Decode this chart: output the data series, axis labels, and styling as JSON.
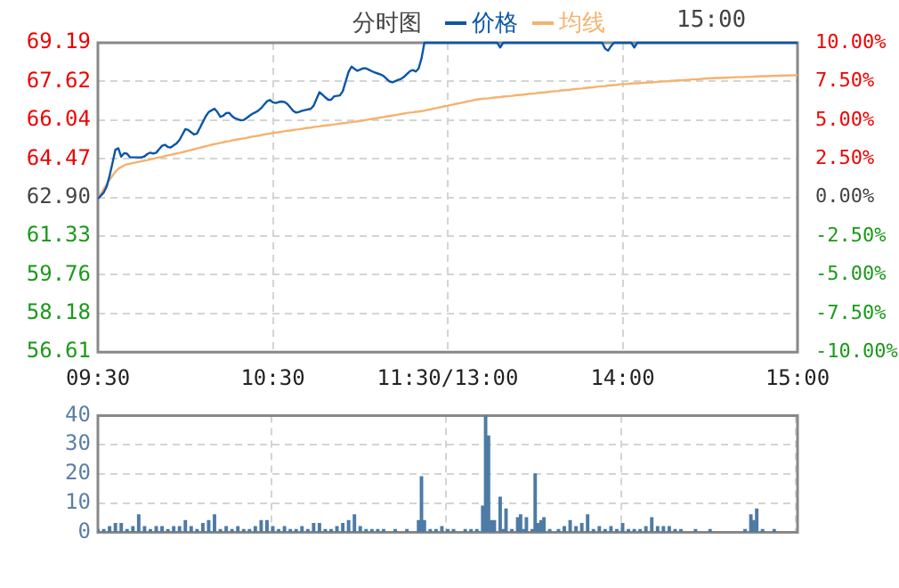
{
  "chart_data": [
    {
      "type": "line",
      "title": "分时图",
      "annotations": [
        "15:00"
      ],
      "legend": "top",
      "grid": true,
      "categories": [
        "09:30",
        null,
        null,
        null,
        null,
        null,
        null,
        null,
        null,
        null,
        null,
        null,
        null,
        null,
        null,
        null,
        null,
        null,
        null,
        null,
        null,
        null,
        null,
        null,
        null,
        null,
        null,
        null,
        null,
        null,
        null,
        null,
        null,
        null,
        null,
        null,
        null,
        null,
        null,
        null,
        null,
        null,
        null,
        null,
        null,
        null,
        null,
        null,
        null,
        null,
        null,
        null,
        null,
        null,
        null,
        null,
        null,
        null,
        null,
        null,
        "10:30",
        null,
        null,
        null,
        null,
        null,
        null,
        null,
        null,
        null,
        null,
        null,
        null,
        null,
        null,
        null,
        null,
        null,
        null,
        null,
        null,
        null,
        null,
        null,
        null,
        null,
        null,
        null,
        null,
        null,
        null,
        null,
        null,
        null,
        null,
        null,
        null,
        null,
        null,
        null,
        null,
        null,
        null,
        null,
        null,
        null,
        null,
        null,
        null,
        null,
        null,
        null,
        null,
        null,
        null,
        null,
        null,
        null,
        null,
        null,
        "11:30/13:00",
        null,
        null,
        null,
        null,
        null,
        null,
        null,
        null,
        null,
        null,
        null,
        null,
        null,
        null,
        null,
        null,
        null,
        null,
        null,
        null,
        null,
        null,
        null,
        null,
        null,
        null,
        null,
        null,
        null,
        null,
        null,
        null,
        null,
        null,
        null,
        null,
        null,
        null,
        null,
        null,
        null,
        null,
        null,
        null,
        null,
        null,
        null,
        null,
        null,
        null,
        null,
        null,
        null,
        null,
        null,
        null,
        null,
        null,
        null,
        "14:00",
        null,
        null,
        null,
        null,
        null,
        null,
        null,
        null,
        null,
        null,
        null,
        null,
        null,
        null,
        null,
        null,
        null,
        null,
        null,
        null,
        null,
        null,
        null,
        null,
        null,
        null,
        null,
        null,
        null,
        null,
        null,
        null,
        null,
        null,
        null,
        null,
        null,
        null,
        null,
        null,
        null,
        null,
        null,
        null,
        null,
        null,
        null,
        null,
        null,
        null,
        null,
        null,
        null,
        null,
        null,
        null,
        null,
        null,
        null,
        "15:00"
      ],
      "ylim": [
        56.61,
        69.19
      ],
      "yticks": [
        56.61,
        58.18,
        59.76,
        61.33,
        {
          "value": 62.9,
          "label": "62.90"
        },
        64.47,
        66.04,
        67.62,
        69.19
      ],
      "y2lim": [
        -10,
        10
      ],
      "y2ticks": [
        {
          "value": -10,
          "label": "-10.00%"
        },
        {
          "value": -7.5,
          "label": "-7.50%"
        },
        {
          "value": -5,
          "label": "-5.00%"
        },
        {
          "value": -2.5,
          "label": "-2.50%"
        },
        {
          "value": 0,
          "label": "0.00%"
        },
        {
          "value": 2.5,
          "label": "2.50%"
        },
        {
          "value": 5,
          "label": "5.00%"
        },
        {
          "value": 7.5,
          "label": "7.50%"
        },
        {
          "value": 10,
          "label": "10.00%"
        }
      ],
      "series": [
        {
          "name": "价格",
          "color": "#0a56a8",
          "values": [
            62.85,
            62.97,
            63.1,
            63.34,
            63.78,
            64.3,
            64.84,
            64.9,
            64.56,
            64.7,
            64.68,
            64.53,
            64.53,
            64.53,
            64.53,
            64.53,
            64.57,
            64.67,
            64.72,
            64.68,
            64.72,
            64.86,
            65.0,
            65.04,
            64.95,
            64.93,
            65.02,
            65.1,
            65.24,
            65.46,
            65.68,
            65.64,
            65.55,
            65.46,
            65.5,
            65.73,
            65.97,
            66.2,
            66.37,
            66.44,
            66.51,
            66.37,
            66.18,
            66.22,
            66.33,
            66.34,
            66.21,
            66.12,
            66.08,
            66.04,
            66.05,
            66.13,
            66.22,
            66.3,
            66.36,
            66.43,
            66.53,
            66.67,
            66.81,
            66.86,
            66.77,
            66.74,
            66.78,
            66.8,
            66.78,
            66.7,
            66.56,
            66.42,
            66.35,
            66.38,
            66.42,
            66.45,
            66.48,
            66.5,
            66.63,
            66.91,
            67.18,
            67.08,
            66.97,
            66.87,
            66.87,
            67.01,
            67.03,
            67.05,
            67.22,
            67.62,
            68.01,
            68.22,
            68.13,
            68.05,
            68.1,
            68.15,
            68.15,
            68.09,
            68.03,
            67.98,
            67.94,
            67.9,
            67.84,
            67.73,
            67.62,
            67.58,
            67.63,
            67.68,
            67.72,
            67.8,
            67.92,
            68.03,
            68.08,
            68.02,
            68.14,
            68.55,
            69.19,
            69.19,
            69.19,
            69.19,
            69.19,
            69.19,
            69.19,
            69.19,
            69.19,
            69.19,
            69.19,
            69.19,
            69.19,
            69.19,
            69.19,
            69.19,
            69.19,
            69.19,
            69.19,
            69.19,
            69.19,
            69.19,
            69.19,
            69.19,
            69.19,
            69.19,
            69.0,
            69.19,
            69.19,
            69.19,
            69.19,
            69.19,
            69.19,
            69.19,
            69.19,
            69.19,
            69.19,
            69.19,
            69.19,
            69.19,
            69.19,
            69.19,
            69.19,
            69.19,
            69.19,
            69.19,
            69.19,
            69.19,
            69.19,
            69.19,
            69.19,
            69.19,
            69.19,
            69.19,
            69.19,
            69.19,
            69.19,
            69.19,
            69.19,
            69.19,
            69.19,
            69.19,
            68.95,
            68.87,
            69.05,
            69.19,
            69.19,
            69.19,
            69.19,
            69.19,
            69.19,
            69.19,
            69.0,
            69.19,
            69.19,
            69.19,
            69.19,
            69.19,
            69.19,
            69.19,
            69.19,
            69.19,
            69.19,
            69.19,
            69.19,
            69.19,
            69.19,
            69.19,
            69.19,
            69.19,
            69.19,
            69.19,
            69.19,
            69.19,
            69.19,
            69.19,
            69.19,
            69.19,
            69.19,
            69.19,
            69.19,
            69.19,
            69.19,
            69.19,
            69.19,
            69.19,
            69.19,
            69.19,
            69.19,
            69.19,
            69.19,
            69.19,
            69.19,
            69.19,
            69.19,
            69.19,
            69.19,
            69.19,
            69.19,
            69.19,
            69.19,
            69.19,
            69.19,
            69.19,
            69.19,
            69.19,
            69.19,
            69.19,
            69.19
          ]
        },
        {
          "name": "均线",
          "color": "#f5b26e",
          "values": [
            62.85,
            63.04,
            63.24,
            63.43,
            63.62,
            63.78,
            63.94,
            64.07,
            64.13,
            64.2,
            64.25,
            64.27,
            64.3,
            64.32,
            64.35,
            64.37,
            64.4,
            64.42,
            64.45,
            64.47,
            64.5,
            64.53,
            64.55,
            64.58,
            64.61,
            64.63,
            64.66,
            64.69,
            64.71,
            64.74,
            64.77,
            64.8,
            64.83,
            64.86,
            64.89,
            64.92,
            64.95,
            64.98,
            65.01,
            65.04,
            65.07,
            65.09,
            65.12,
            65.14,
            65.17,
            65.19,
            65.22,
            65.24,
            65.26,
            65.28,
            65.3,
            65.32,
            65.35,
            65.37,
            65.39,
            65.41,
            65.43,
            65.46,
            65.48,
            65.5,
            65.52,
            65.54,
            65.55,
            65.57,
            65.59,
            65.61,
            65.62,
            65.64,
            65.66,
            65.67,
            65.69,
            65.71,
            65.73,
            65.74,
            65.76,
            65.78,
            65.79,
            65.81,
            65.82,
            65.84,
            65.85,
            65.87,
            65.88,
            65.9,
            65.92,
            65.93,
            65.95,
            65.96,
            65.98,
            65.99,
            66.01,
            66.03,
            66.05,
            66.07,
            66.09,
            66.11,
            66.13,
            66.15,
            66.17,
            66.19,
            66.21,
            66.23,
            66.25,
            66.27,
            66.29,
            66.31,
            66.33,
            66.35,
            66.36,
            66.38,
            66.39,
            66.41,
            66.43,
            66.46,
            66.48,
            66.51,
            66.53,
            66.56,
            66.58,
            66.61,
            66.63,
            66.66,
            66.68,
            66.71,
            66.73,
            66.76,
            66.78,
            66.81,
            66.83,
            66.86,
            66.88,
            66.9,
            66.91,
            66.92,
            66.93,
            66.95,
            66.96,
            66.97,
            66.98,
            67.0,
            67.01,
            67.02,
            67.03,
            67.05,
            67.06,
            67.07,
            67.08,
            67.1,
            67.11,
            67.12,
            67.13,
            67.15,
            67.16,
            67.17,
            67.18,
            67.2,
            67.21,
            67.22,
            67.23,
            67.25,
            67.26,
            67.27,
            67.28,
            67.3,
            67.31,
            67.32,
            67.33,
            67.35,
            67.36,
            67.37,
            67.38,
            67.4,
            67.41,
            67.42,
            67.43,
            67.45,
            67.46,
            67.47,
            67.48,
            67.5,
            67.51,
            67.51,
            67.52,
            67.53,
            67.54,
            67.54,
            67.55,
            67.56,
            67.57,
            67.58,
            67.58,
            67.59,
            67.6,
            67.61,
            67.62,
            67.62,
            67.63,
            67.64,
            67.65,
            67.66,
            67.66,
            67.67,
            67.68,
            67.69,
            67.7,
            67.7,
            67.71,
            67.72,
            67.73,
            67.74,
            67.74,
            67.75,
            67.76,
            67.76,
            67.76,
            67.77,
            67.77,
            67.78,
            67.78,
            67.79,
            67.79,
            67.79,
            67.8,
            67.8,
            67.81,
            67.81,
            67.82,
            67.82,
            67.83,
            67.83,
            67.83,
            67.84,
            67.84,
            67.85,
            67.85,
            67.86,
            67.86,
            67.86,
            67.87,
            67.87,
            67.88
          ]
        }
      ]
    },
    {
      "type": "bar",
      "grid": true,
      "categories": [
        null,
        null,
        null,
        null,
        null,
        null,
        null,
        null,
        null,
        null,
        null,
        null,
        null,
        null,
        null,
        null,
        null,
        null,
        null,
        null,
        null,
        null,
        null,
        null,
        null,
        null,
        null,
        null,
        null,
        null,
        null,
        null,
        null,
        null,
        null,
        null,
        null,
        null,
        null,
        null,
        null,
        null,
        null,
        null,
        null,
        null,
        null,
        null,
        null,
        null,
        null,
        null,
        null,
        null,
        null,
        null,
        null,
        null,
        null,
        null,
        null,
        null,
        null,
        null,
        null,
        null,
        null,
        null,
        null,
        null,
        null,
        null,
        null,
        null,
        null,
        null,
        null,
        null,
        null,
        null,
        null,
        null,
        null,
        null,
        null,
        null,
        null,
        null,
        null,
        null,
        null,
        null,
        null,
        null,
        null,
        null,
        null,
        null,
        null,
        null,
        null,
        null,
        null,
        null,
        null,
        null,
        null,
        null,
        null,
        null,
        null,
        null,
        null,
        null,
        null,
        null,
        null,
        null,
        null,
        null,
        null,
        null,
        null,
        null,
        null,
        null,
        null,
        null,
        null,
        null,
        null,
        null,
        null,
        null,
        null,
        null,
        null,
        null,
        null,
        null,
        null,
        null,
        null,
        null,
        null,
        null,
        null,
        null,
        null,
        null,
        null,
        null,
        null,
        null,
        null,
        null,
        null,
        null,
        null,
        null,
        null,
        null,
        null,
        null,
        null,
        null,
        null,
        null,
        null,
        null,
        null,
        null,
        null,
        null,
        null,
        null,
        null,
        null,
        null,
        null,
        null,
        null,
        null,
        null,
        null,
        null,
        null,
        null,
        null,
        null,
        null,
        null,
        null,
        null,
        null,
        null,
        null,
        null,
        null,
        null,
        null,
        null,
        null,
        null,
        null,
        null,
        null,
        null,
        null,
        null,
        null,
        null,
        null,
        null,
        null,
        null,
        null,
        null,
        null,
        null,
        null,
        null,
        null,
        null,
        null,
        null,
        null,
        null,
        null,
        null,
        null,
        null,
        null,
        null,
        null,
        null,
        null,
        null,
        null,
        null,
        null
      ],
      "ylim": [
        0,
        40
      ],
      "yticks": [
        0,
        10,
        20,
        30,
        40
      ],
      "series": [
        {
          "color": "#4d7ba5",
          "values": [
            1,
            null,
            1,
            null,
            2,
            null,
            3,
            null,
            3,
            null,
            1,
            null,
            2,
            null,
            6,
            null,
            2,
            null,
            1,
            null,
            2,
            null,
            2,
            null,
            1,
            null,
            2,
            null,
            2,
            null,
            4,
            null,
            2,
            null,
            1,
            null,
            3,
            null,
            4,
            null,
            6,
            null,
            1,
            null,
            2,
            null,
            1,
            null,
            2,
            null,
            1,
            null,
            1,
            null,
            2,
            null,
            4,
            null,
            4,
            null,
            2,
            null,
            1,
            null,
            2,
            null,
            1,
            null,
            1,
            null,
            2,
            null,
            1,
            null,
            3,
            null,
            3,
            null,
            1,
            null,
            1,
            null,
            2,
            null,
            3,
            null,
            4,
            null,
            6,
            null,
            2,
            null,
            1,
            null,
            1,
            null,
            1,
            null,
            1,
            null,
            null,
            null,
            1,
            null,
            null,
            null,
            1,
            null,
            null,
            null,
            4,
            19,
            4,
            null,
            1,
            null,
            1,
            null,
            2,
            null,
            1,
            null,
            1,
            null,
            null,
            null,
            1,
            null,
            1,
            null,
            1,
            null,
            9,
            40,
            33,
            4,
            4,
            null,
            12,
            1,
            8,
            null,
            1,
            null,
            5,
            6,
            1,
            5,
            null,
            1,
            20,
            3,
            4,
            5,
            null,
            1,
            null,
            null,
            1,
            null,
            2,
            null,
            4,
            null,
            2,
            null,
            3,
            null,
            6,
            null,
            1,
            null,
            2,
            null,
            1,
            null,
            2,
            null,
            1,
            null,
            3,
            null,
            1,
            null,
            1,
            null,
            1,
            null,
            2,
            null,
            5,
            null,
            2,
            null,
            2,
            null,
            2,
            null,
            1,
            null,
            1,
            null,
            null,
            null,
            null,
            1,
            null,
            null,
            null,
            null,
            1,
            null,
            null,
            null,
            null,
            null,
            null,
            null,
            null,
            null,
            null,
            null,
            1,
            null,
            6,
            4,
            8,
            null,
            1,
            null,
            null,
            null,
            1,
            null,
            null,
            null,
            null,
            null,
            null,
            null,
            null
          ]
        }
      ]
    }
  ]
}
